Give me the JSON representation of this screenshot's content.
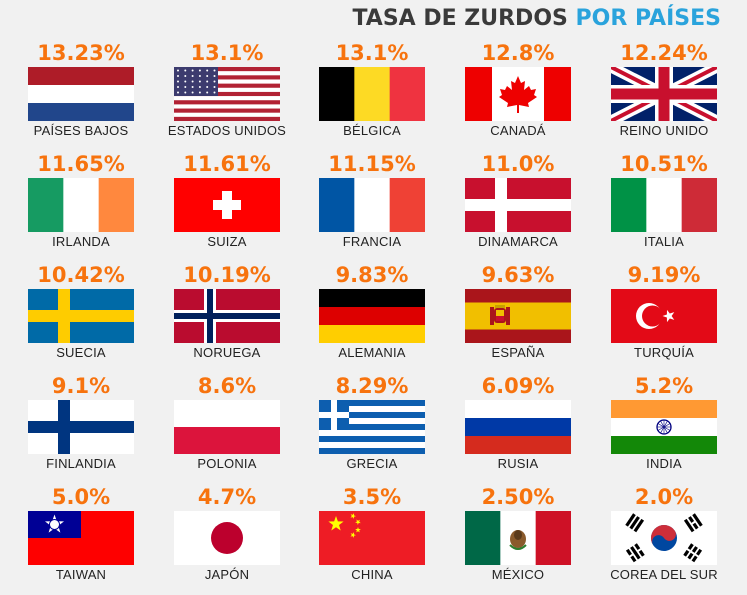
{
  "title": {
    "part1": "TASA DE ZURDOS ",
    "part2": "POR PAÍSES"
  },
  "colors": {
    "title_dark": "#3a3a3a",
    "title_accent": "#2aa3dc",
    "percent": "#f7730e"
  },
  "chart_data": {
    "type": "table",
    "title": "TASA DE ZURDOS POR PAÍSES",
    "countries": [
      {
        "name": "PAÍSES BAJOS",
        "value": "13.23%",
        "flag": "netherlands"
      },
      {
        "name": "ESTADOS UNIDOS",
        "value": "13.1%",
        "flag": "usa"
      },
      {
        "name": "BÉLGICA",
        "value": "13.1%",
        "flag": "belgium"
      },
      {
        "name": "CANADÁ",
        "value": "12.8%",
        "flag": "canada"
      },
      {
        "name": "REINO UNIDO",
        "value": "12.24%",
        "flag": "uk"
      },
      {
        "name": "IRLANDA",
        "value": "11.65%",
        "flag": "ireland"
      },
      {
        "name": "SUIZA",
        "value": "11.61%",
        "flag": "switzerland"
      },
      {
        "name": "FRANCIA",
        "value": "11.15%",
        "flag": "france"
      },
      {
        "name": "DINAMARCA",
        "value": "11.0%",
        "flag": "denmark"
      },
      {
        "name": "ITALIA",
        "value": "10.51%",
        "flag": "italy"
      },
      {
        "name": "SUECIA",
        "value": "10.42%",
        "flag": "sweden"
      },
      {
        "name": "NORUEGA",
        "value": "10.19%",
        "flag": "norway"
      },
      {
        "name": "ALEMANIA",
        "value": "9.83%",
        "flag": "germany"
      },
      {
        "name": "ESPAÑA",
        "value": "9.63%",
        "flag": "spain"
      },
      {
        "name": "TURQUÍA",
        "value": "9.19%",
        "flag": "turkey"
      },
      {
        "name": "FINLANDIA",
        "value": "9.1%",
        "flag": "finland"
      },
      {
        "name": "POLONIA",
        "value": "8.6%",
        "flag": "poland"
      },
      {
        "name": "GRECIA",
        "value": "8.29%",
        "flag": "greece"
      },
      {
        "name": "RUSIA",
        "value": "6.09%",
        "flag": "russia"
      },
      {
        "name": "INDIA",
        "value": "5.2%",
        "flag": "india"
      },
      {
        "name": "TAIWAN",
        "value": "5.0%",
        "flag": "taiwan"
      },
      {
        "name": "JAPÓN",
        "value": "4.7%",
        "flag": "japan"
      },
      {
        "name": "CHINA",
        "value": "3.5%",
        "flag": "china"
      },
      {
        "name": "MÉXICO",
        "value": "2.50%",
        "flag": "mexico"
      },
      {
        "name": "COREA DEL SUR",
        "value": "2.0%",
        "flag": "south-korea"
      }
    ]
  }
}
